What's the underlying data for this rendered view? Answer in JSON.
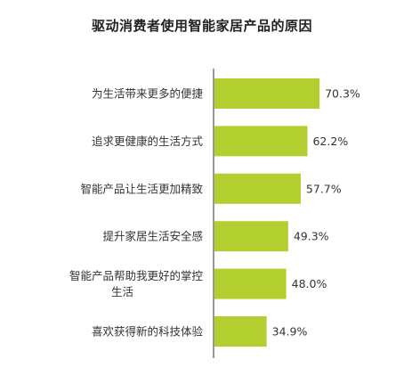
{
  "chart_data": {
    "type": "bar",
    "orientation": "horizontal",
    "title": "驱动消费者使用智能家居产品的原因",
    "categories": [
      [
        "为生活带来更多的便捷"
      ],
      [
        "追求更健康的生活方式"
      ],
      [
        "智能产品让生活更加精致"
      ],
      [
        "提升家居生活安全感"
      ],
      [
        "智能产品帮助我更好的掌控",
        "生活"
      ],
      [
        "喜欢获得新的科技体验"
      ]
    ],
    "values": [
      70.3,
      62.2,
      57.7,
      49.3,
      48.0,
      34.9
    ],
    "value_labels": [
      "70.3%",
      "62.2%",
      "57.7%",
      "49.3%",
      "48.0%",
      "34.9%"
    ],
    "unit": "%",
    "xlim": [
      0,
      100
    ],
    "grid": false,
    "legend": "none",
    "bar_color": "#b3cf2f",
    "axis_color": "#333333"
  }
}
